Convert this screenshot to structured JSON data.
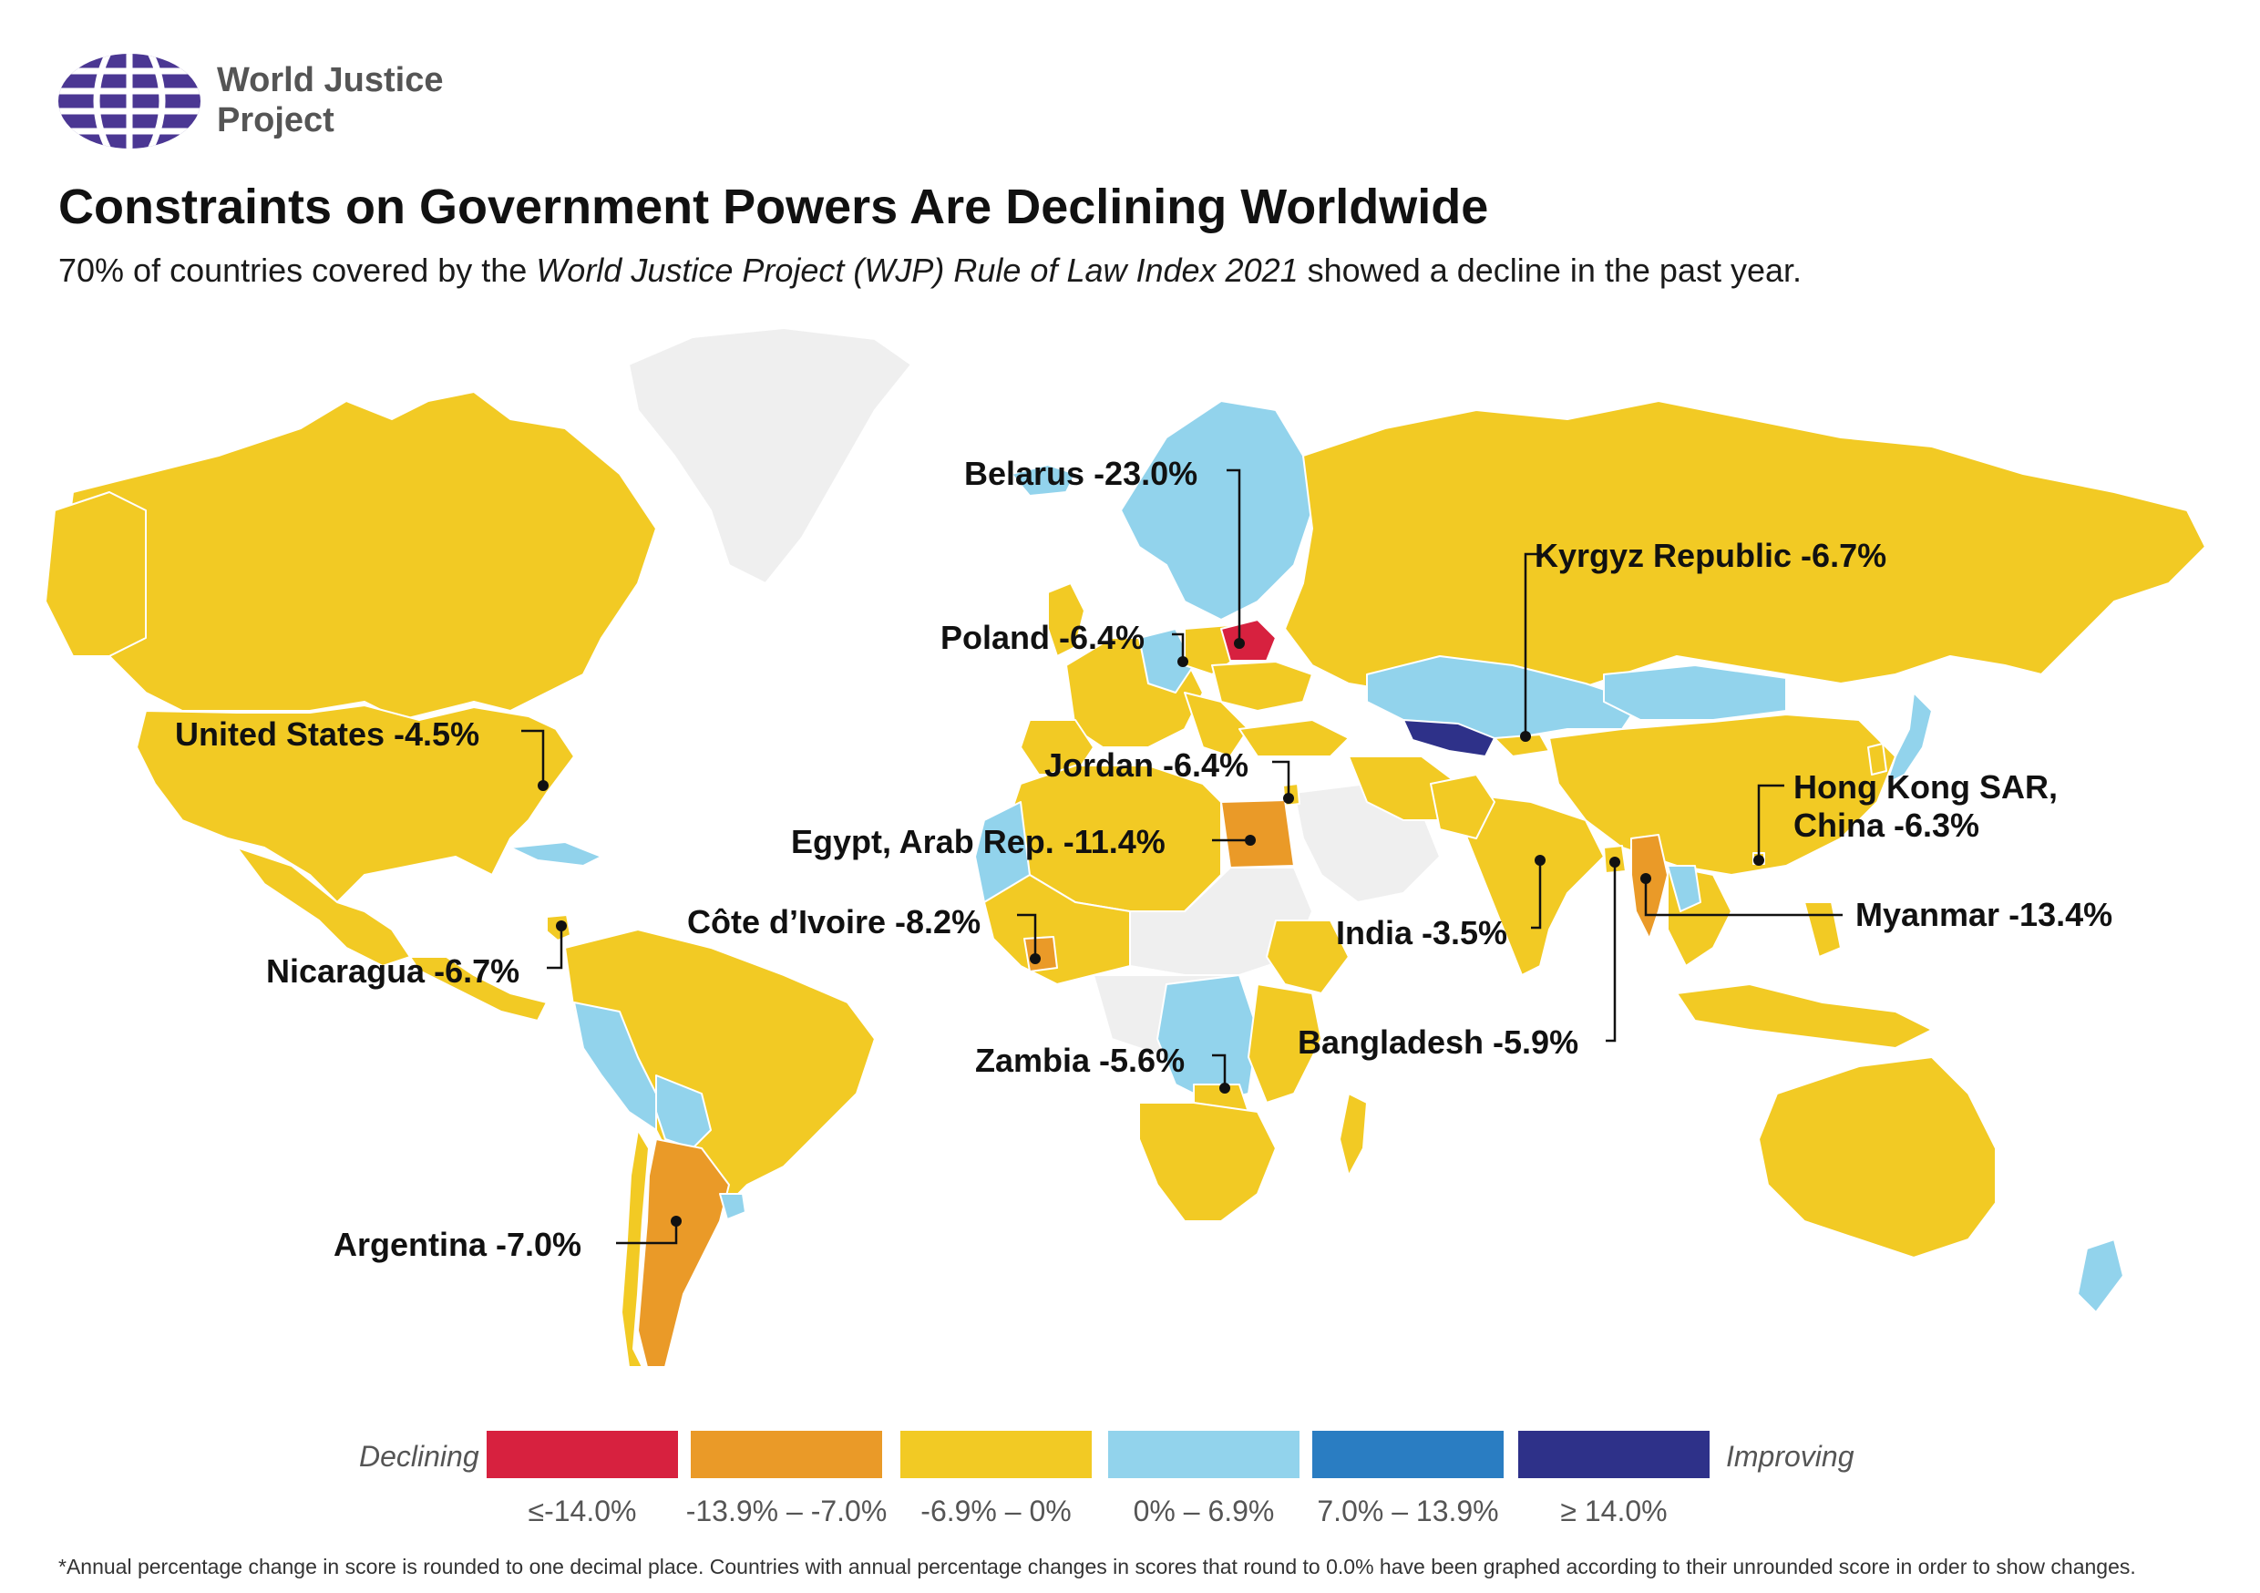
{
  "header": {
    "logo_name": "World Justice Project",
    "logo_line1": "World Justice",
    "logo_line2": "Project",
    "title": "Constraints on Government Powers Are Declining Worldwide",
    "subtitle_pre": "70% of countries covered by the ",
    "subtitle_italic": "World Justice Project (WJP) Rule of Law Index 2021",
    "subtitle_post": " showed a decline in the past year."
  },
  "colors": {
    "le_-14": "#d7213f",
    "-13.9_-7": "#ea9a28",
    "-6.9_0": "#f2ca24",
    "0_6.9": "#92d3ec",
    "7_13.9": "#2a7dc2",
    "ge_14": "#2e3189",
    "no_data": "#efefef",
    "ocean": "#ffffff",
    "logo": "#4b3793"
  },
  "callouts": [
    {
      "id": "belarus",
      "label": "Belarus -23.0%"
    },
    {
      "id": "kyrgyz",
      "label": "Kyrgyz Republic -6.7%"
    },
    {
      "id": "poland",
      "label": "Poland -6.4%"
    },
    {
      "id": "us",
      "label": "United States -4.5%"
    },
    {
      "id": "jordan",
      "label": "Jordan -6.4%"
    },
    {
      "id": "hongkong1",
      "label": "Hong Kong SAR,"
    },
    {
      "id": "hongkong2",
      "label": "China -6.3%"
    },
    {
      "id": "egypt",
      "label": "Egypt, Arab Rep. -11.4%"
    },
    {
      "id": "myanmar",
      "label": "Myanmar -13.4%"
    },
    {
      "id": "cote",
      "label": "Côte d’Ivoire -8.2%"
    },
    {
      "id": "india",
      "label": "India -3.5%"
    },
    {
      "id": "nicaragua",
      "label": "Nicaragua -6.7%"
    },
    {
      "id": "bangladesh",
      "label": "Bangladesh -5.9%"
    },
    {
      "id": "zambia",
      "label": "Zambia -5.6%"
    },
    {
      "id": "argentina",
      "label": "Argentina -7.0%"
    }
  ],
  "legend": {
    "left_label": "Declining",
    "right_label": "Improving",
    "bins": [
      {
        "label": "≤-14.0%",
        "color": "#d7213f"
      },
      {
        "label": "-13.9% –  -7.0%",
        "color": "#ea9a28"
      },
      {
        "label": "-6.9% – 0%",
        "color": "#f2ca24"
      },
      {
        "label": "0% – 6.9%",
        "color": "#92d3ec"
      },
      {
        "label": "7.0% – 13.9%",
        "color": "#2a7dc2"
      },
      {
        "label": "≥ 14.0%",
        "color": "#2e3189"
      }
    ]
  },
  "footnote": "*Annual percentage change in score is rounded to one decimal place. Countries with annual percentage changes in scores that round to 0.0% have been graphed according to their unrounded score in order to show changes."
}
